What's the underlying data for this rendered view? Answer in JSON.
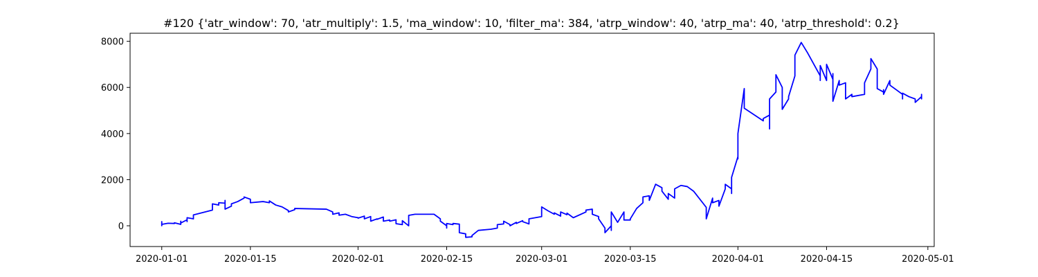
{
  "chart_data": {
    "type": "line",
    "title": "#120 {'atr_window': 70, 'atr_multiply': 1.5, 'ma_window': 10, 'filter_ma': 384, 'atrp_window': 40, 'atrp_ma': 40, 'atrp_threshold': 0.2}",
    "xlabel": "",
    "ylabel": "",
    "x_type": "date",
    "xlim": [
      "2019-12-27",
      "2020-05-02"
    ],
    "ylim": [
      -900,
      8350
    ],
    "x_ticks": [
      "2020-01-01",
      "2020-01-15",
      "2020-02-01",
      "2020-02-15",
      "2020-03-01",
      "2020-03-15",
      "2020-04-01",
      "2020-04-15",
      "2020-05-01"
    ],
    "y_ticks": [
      0,
      2000,
      4000,
      6000,
      8000
    ],
    "y_tick_labels": [
      "0",
      "2000",
      "4000",
      "6000",
      "8000"
    ],
    "grid": false,
    "series": [
      {
        "color": "#0000ff",
        "points": [
          [
            "2020-01-01",
            0
          ],
          [
            "2020-01-01",
            180
          ],
          [
            "2020-01-01",
            60
          ],
          [
            "2020-01-02",
            110
          ],
          [
            "2020-01-03",
            100
          ],
          [
            "2020-01-03",
            130
          ],
          [
            "2020-01-04",
            60
          ],
          [
            "2020-01-04",
            200
          ],
          [
            "2020-01-04",
            120
          ],
          [
            "2020-01-05",
            260
          ],
          [
            "2020-01-05",
            180
          ],
          [
            "2020-01-05",
            350
          ],
          [
            "2020-01-06",
            300
          ],
          [
            "2020-01-06",
            420
          ],
          [
            "2020-01-06",
            470
          ],
          [
            "2020-01-09",
            680
          ],
          [
            "2020-01-09",
            950
          ],
          [
            "2020-01-10",
            900
          ],
          [
            "2020-01-10",
            1000
          ],
          [
            "2020-01-11",
            980
          ],
          [
            "2020-01-11",
            1100
          ],
          [
            "2020-01-11",
            720
          ],
          [
            "2020-01-12",
            850
          ],
          [
            "2020-01-12",
            950
          ],
          [
            "2020-01-13",
            1050
          ],
          [
            "2020-01-14",
            1200
          ],
          [
            "2020-01-14",
            1250
          ],
          [
            "2020-01-15",
            1150
          ],
          [
            "2020-01-15",
            1000
          ],
          [
            "2020-01-17",
            1050
          ],
          [
            "2020-01-18",
            1000
          ],
          [
            "2020-01-18",
            1080
          ],
          [
            "2020-01-19",
            900
          ],
          [
            "2020-01-20",
            820
          ],
          [
            "2020-01-21",
            660
          ],
          [
            "2020-01-21",
            600
          ],
          [
            "2020-01-22",
            700
          ],
          [
            "2020-01-22",
            750
          ],
          [
            "2020-01-27",
            720
          ],
          [
            "2020-01-28",
            600
          ],
          [
            "2020-01-28",
            500
          ],
          [
            "2020-01-29",
            560
          ],
          [
            "2020-01-29",
            460
          ],
          [
            "2020-01-30",
            500
          ],
          [
            "2020-01-31",
            400
          ],
          [
            "2020-02-01",
            350
          ],
          [
            "2020-02-01",
            330
          ],
          [
            "2020-02-02",
            420
          ],
          [
            "2020-02-02",
            300
          ],
          [
            "2020-02-03",
            400
          ],
          [
            "2020-02-03",
            200
          ],
          [
            "2020-02-04",
            300
          ],
          [
            "2020-02-04",
            280
          ],
          [
            "2020-02-05",
            380
          ],
          [
            "2020-02-05",
            200
          ],
          [
            "2020-02-06",
            250
          ],
          [
            "2020-02-06",
            200
          ],
          [
            "2020-02-07",
            260
          ],
          [
            "2020-02-07",
            90
          ],
          [
            "2020-02-08",
            50
          ],
          [
            "2020-02-08",
            220
          ],
          [
            "2020-02-09",
            0
          ],
          [
            "2020-02-09",
            450
          ],
          [
            "2020-02-10",
            500
          ],
          [
            "2020-02-13",
            500
          ],
          [
            "2020-02-14",
            300
          ],
          [
            "2020-02-14",
            200
          ],
          [
            "2020-02-15",
            0
          ],
          [
            "2020-02-15",
            -100
          ],
          [
            "2020-02-15",
            100
          ],
          [
            "2020-02-16",
            50
          ],
          [
            "2020-02-16",
            100
          ],
          [
            "2020-02-17",
            70
          ],
          [
            "2020-02-17",
            -300
          ],
          [
            "2020-02-18",
            -350
          ],
          [
            "2020-02-18",
            -500
          ],
          [
            "2020-02-19",
            -480
          ],
          [
            "2020-02-19",
            -420
          ],
          [
            "2020-02-20",
            -200
          ],
          [
            "2020-02-22",
            -150
          ],
          [
            "2020-02-23",
            -100
          ],
          [
            "2020-02-23",
            50
          ],
          [
            "2020-02-24",
            80
          ],
          [
            "2020-02-24",
            200
          ],
          [
            "2020-02-25",
            50
          ],
          [
            "2020-02-25",
            0
          ],
          [
            "2020-02-26",
            150
          ],
          [
            "2020-02-26",
            100
          ],
          [
            "2020-02-27",
            220
          ],
          [
            "2020-02-27",
            180
          ],
          [
            "2020-02-28",
            80
          ],
          [
            "2020-02-28",
            300
          ],
          [
            "2020-03-01",
            400
          ],
          [
            "2020-03-01",
            450
          ],
          [
            "2020-03-01",
            820
          ],
          [
            "2020-03-02",
            650
          ],
          [
            "2020-03-03",
            500
          ],
          [
            "2020-03-03",
            560
          ],
          [
            "2020-03-04",
            420
          ],
          [
            "2020-03-04",
            600
          ],
          [
            "2020-03-05",
            480
          ],
          [
            "2020-03-05",
            550
          ],
          [
            "2020-03-06",
            350
          ],
          [
            "2020-03-08",
            600
          ],
          [
            "2020-03-08",
            680
          ],
          [
            "2020-03-09",
            720
          ],
          [
            "2020-03-09",
            500
          ],
          [
            "2020-03-10",
            400
          ],
          [
            "2020-03-10",
            300
          ],
          [
            "2020-03-11",
            -100
          ],
          [
            "2020-03-11",
            -300
          ],
          [
            "2020-03-12",
            0
          ],
          [
            "2020-03-12",
            -200
          ],
          [
            "2020-03-12",
            600
          ],
          [
            "2020-03-13",
            150
          ],
          [
            "2020-03-14",
            600
          ],
          [
            "2020-03-14",
            250
          ],
          [
            "2020-03-15",
            250
          ],
          [
            "2020-03-15",
            300
          ],
          [
            "2020-03-16",
            750
          ],
          [
            "2020-03-17",
            1000
          ],
          [
            "2020-03-17",
            1250
          ],
          [
            "2020-03-18",
            1300
          ],
          [
            "2020-03-18",
            1100
          ],
          [
            "2020-03-19",
            1800
          ],
          [
            "2020-03-20",
            1650
          ],
          [
            "2020-03-20",
            1500
          ],
          [
            "2020-03-21",
            1150
          ],
          [
            "2020-03-21",
            1300
          ],
          [
            "2020-03-21",
            1350
          ],
          [
            "2020-03-21",
            1400
          ],
          [
            "2020-03-22",
            1200
          ],
          [
            "2020-03-22",
            1600
          ],
          [
            "2020-03-23",
            1750
          ],
          [
            "2020-03-24",
            1700
          ],
          [
            "2020-03-25",
            1500
          ],
          [
            "2020-03-27",
            800
          ],
          [
            "2020-03-27",
            300
          ],
          [
            "2020-03-28",
            1200
          ],
          [
            "2020-03-28",
            1000
          ],
          [
            "2020-03-29",
            1100
          ],
          [
            "2020-03-29",
            850
          ],
          [
            "2020-03-30",
            1600
          ],
          [
            "2020-03-30",
            1800
          ],
          [
            "2020-03-31",
            1600
          ],
          [
            "2020-03-31",
            1400
          ],
          [
            "2020-03-31",
            1700
          ],
          [
            "2020-03-31",
            1500
          ],
          [
            "2020-03-31",
            2100
          ],
          [
            "2020-04-01",
            3000
          ],
          [
            "2020-04-01",
            2900
          ],
          [
            "2020-04-01",
            4000
          ],
          [
            "2020-04-02",
            5950
          ],
          [
            "2020-04-02",
            5100
          ],
          [
            "2020-04-05",
            4550
          ],
          [
            "2020-04-05",
            4650
          ],
          [
            "2020-04-06",
            4800
          ],
          [
            "2020-04-06",
            4200
          ],
          [
            "2020-04-06",
            5500
          ],
          [
            "2020-04-07",
            5800
          ],
          [
            "2020-04-07",
            6550
          ],
          [
            "2020-04-08",
            6000
          ],
          [
            "2020-04-08",
            5050
          ],
          [
            "2020-04-09",
            5500
          ],
          [
            "2020-04-09",
            5600
          ],
          [
            "2020-04-10",
            6500
          ],
          [
            "2020-04-10",
            7400
          ],
          [
            "2020-04-11",
            7950
          ],
          [
            "2020-04-12",
            7500
          ],
          [
            "2020-04-14",
            6500
          ],
          [
            "2020-04-14",
            6800
          ],
          [
            "2020-04-14",
            6300
          ],
          [
            "2020-04-14",
            6950
          ],
          [
            "2020-04-15",
            6300
          ],
          [
            "2020-04-15",
            6500
          ],
          [
            "2020-04-15",
            6600
          ],
          [
            "2020-04-15",
            7000
          ],
          [
            "2020-04-16",
            6350
          ],
          [
            "2020-04-16",
            6100
          ],
          [
            "2020-04-16",
            6600
          ],
          [
            "2020-04-16",
            5400
          ],
          [
            "2020-04-17",
            6300
          ],
          [
            "2020-04-17",
            6100
          ],
          [
            "2020-04-18",
            6200
          ],
          [
            "2020-04-18",
            5900
          ],
          [
            "2020-04-18",
            5600
          ],
          [
            "2020-04-18",
            5500
          ],
          [
            "2020-04-19",
            5700
          ],
          [
            "2020-04-19",
            5600
          ],
          [
            "2020-04-21",
            5700
          ],
          [
            "2020-04-21",
            6200
          ],
          [
            "2020-04-22",
            6800
          ],
          [
            "2020-04-22",
            7250
          ],
          [
            "2020-04-23",
            6800
          ],
          [
            "2020-04-23",
            6500
          ],
          [
            "2020-04-23",
            6300
          ],
          [
            "2020-04-23",
            5950
          ],
          [
            "2020-04-24",
            5800
          ],
          [
            "2020-04-24",
            5900
          ],
          [
            "2020-04-24",
            5700
          ],
          [
            "2020-04-25",
            6300
          ],
          [
            "2020-04-25",
            6100
          ],
          [
            "2020-04-26",
            5900
          ],
          [
            "2020-04-27",
            5700
          ],
          [
            "2020-04-27",
            5500
          ],
          [
            "2020-04-27",
            5750
          ],
          [
            "2020-04-28",
            5600
          ],
          [
            "2020-04-29",
            5500
          ],
          [
            "2020-04-29",
            5350
          ],
          [
            "2020-04-30",
            5600
          ],
          [
            "2020-04-30",
            5500
          ],
          [
            "2020-04-30",
            5700
          ]
        ]
      }
    ]
  }
}
